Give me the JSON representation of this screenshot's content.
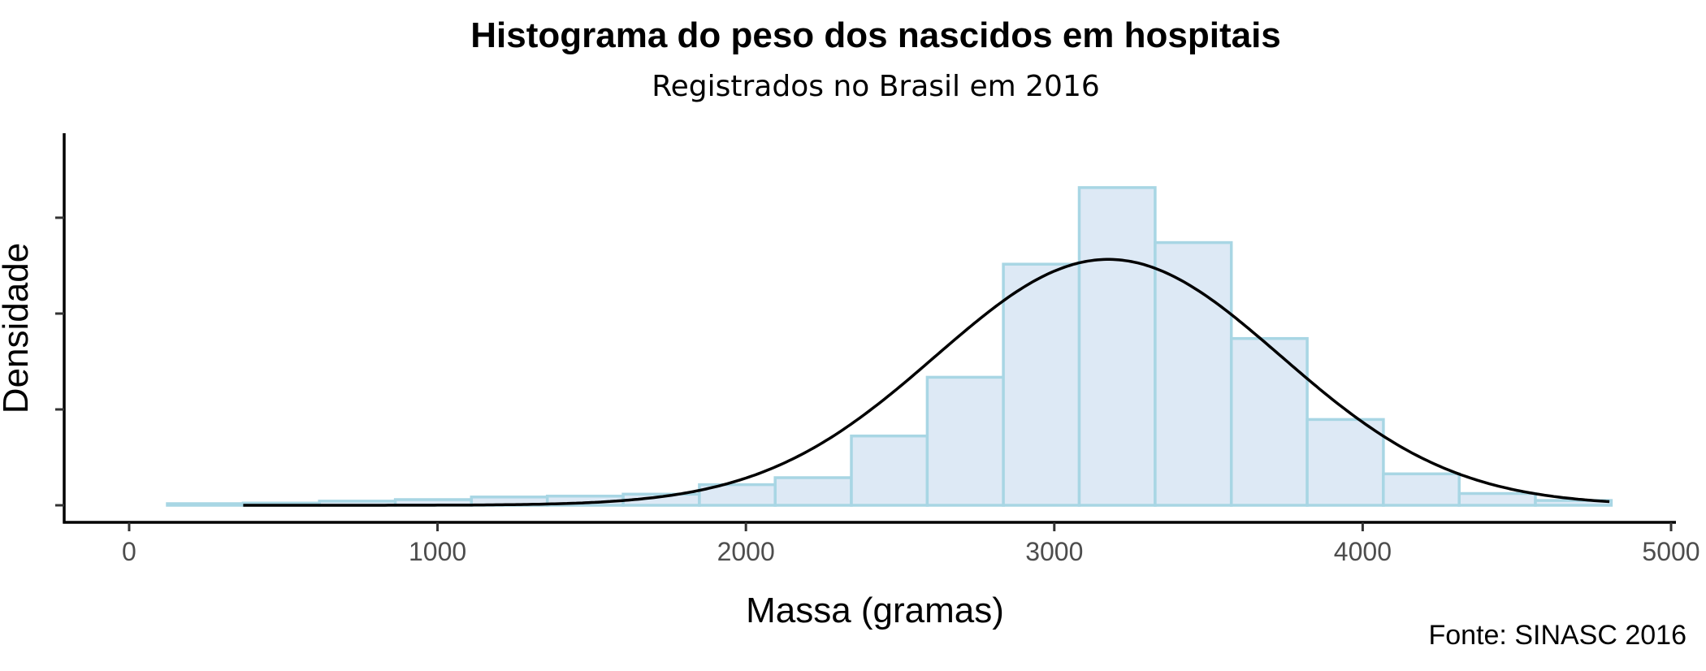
{
  "chart_data": {
    "type": "histogram",
    "title": "Histograma do peso dos nascidos em hospitais",
    "subtitle": "Registrados no Brasil em 2016",
    "xlabel": "Massa (gramas)",
    "ylabel": "Densidade",
    "caption": "Fonte: SINASC 2016",
    "xlim": [
      -100,
      5000
    ],
    "x_ticks": [
      0,
      1000,
      2000,
      3000,
      4000,
      5000
    ],
    "x_tick_labels": [
      "0",
      "1000",
      "2000",
      "3000",
      "4000",
      "5000"
    ],
    "y_tick_count": 4,
    "ylim": [
      0,
      1.12
    ],
    "bin_width": 246.4,
    "bins": [
      {
        "start": 124,
        "end": 370,
        "value": 0.005
      },
      {
        "start": 370,
        "end": 617,
        "value": 0.007
      },
      {
        "start": 617,
        "end": 863,
        "value": 0.013
      },
      {
        "start": 863,
        "end": 1110,
        "value": 0.018
      },
      {
        "start": 1110,
        "end": 1356,
        "value": 0.026
      },
      {
        "start": 1356,
        "end": 1602,
        "value": 0.029
      },
      {
        "start": 1602,
        "end": 1849,
        "value": 0.035
      },
      {
        "start": 1849,
        "end": 2095,
        "value": 0.065
      },
      {
        "start": 2095,
        "end": 2342,
        "value": 0.087
      },
      {
        "start": 2342,
        "end": 2588,
        "value": 0.218
      },
      {
        "start": 2588,
        "end": 2835,
        "value": 0.403
      },
      {
        "start": 2835,
        "end": 3081,
        "value": 0.759
      },
      {
        "start": 3081,
        "end": 3327,
        "value": 1.0
      },
      {
        "start": 3327,
        "end": 3574,
        "value": 0.827
      },
      {
        "start": 3574,
        "end": 3820,
        "value": 0.525
      },
      {
        "start": 3820,
        "end": 4067,
        "value": 0.27
      },
      {
        "start": 4067,
        "end": 4313,
        "value": 0.099
      },
      {
        "start": 4313,
        "end": 4560,
        "value": 0.037
      },
      {
        "start": 4560,
        "end": 4806,
        "value": 0.015
      }
    ],
    "density_curve": {
      "type": "normal",
      "mean": 3175,
      "sd": 560,
      "peak_value": 0.774,
      "x_range": [
        370,
        4806
      ]
    },
    "grid": false,
    "legend": "none",
    "colors": {
      "bar_fill": "#dde9f5",
      "bar_stroke": "#a8d6e4",
      "curve": "#000000",
      "axis": "#000000",
      "tick_text": "#4d4d4d"
    }
  }
}
